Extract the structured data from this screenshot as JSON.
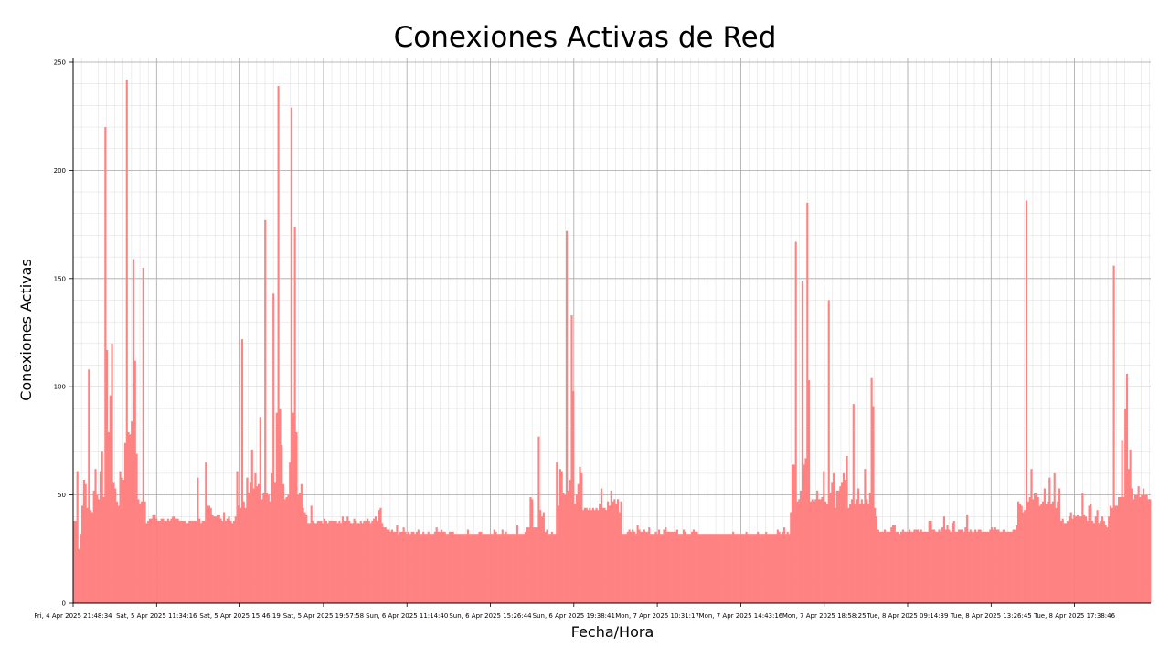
{
  "chart_data": {
    "type": "bar",
    "title": "Conexiones Activas de Red",
    "xlabel": "Fecha/Hora",
    "ylabel": "Conexiones Activas",
    "ylim": [
      0,
      250
    ],
    "yticks": [
      0,
      50,
      100,
      150,
      200,
      250
    ],
    "x_tick_labels": [
      "Fri, 4 Apr 2025 21:48:34",
      "Sat, 5 Apr 2025 11:34:16",
      "Sat, 5 Apr 2025 15:46:19",
      "Sat, 5 Apr 2025 19:57:58",
      "Sun, 6 Apr 2025 11:14:40",
      "Sun, 6 Apr 2025 15:26:44",
      "Sun, 6 Apr 2025 19:38:41",
      "Mon, 7 Apr 2025 10:31:17",
      "Mon, 7 Apr 2025 14:43:16",
      "Mon, 7 Apr 2025 18:58:25",
      "Tue, 8 Apr 2025 09:14:39",
      "Tue, 8 Apr 2025 13:26:45",
      "Tue, 8 Apr 2025 17:38:46"
    ],
    "grid": true,
    "bar_color": "#ff7f7f",
    "values": [
      38,
      38,
      61,
      25,
      32,
      45,
      57,
      55,
      44,
      108,
      43,
      42,
      52,
      62,
      50,
      48,
      61,
      70,
      49,
      220,
      117,
      79,
      96,
      120,
      56,
      53,
      47,
      45,
      61,
      58,
      57,
      74,
      242,
      79,
      78,
      84,
      159,
      112,
      69,
      48,
      46,
      47,
      155,
      47,
      37,
      38,
      39,
      39,
      41,
      41,
      39,
      38,
      38,
      39,
      39,
      38,
      38,
      39,
      38,
      39,
      40,
      40,
      39,
      39,
      38,
      38,
      38,
      38,
      37,
      37,
      38,
      38,
      38,
      38,
      38,
      58,
      39,
      37,
      38,
      38,
      65,
      45,
      45,
      44,
      41,
      40,
      40,
      41,
      41,
      39,
      38,
      42,
      38,
      39,
      40,
      38,
      37,
      38,
      40,
      61,
      45,
      44,
      122,
      47,
      44,
      58,
      51,
      56,
      71,
      53,
      60,
      54,
      55,
      86,
      48,
      51,
      177,
      51,
      50,
      47,
      60,
      143,
      56,
      88,
      239,
      90,
      73,
      55,
      48,
      49,
      50,
      65,
      229,
      88,
      174,
      79,
      50,
      51,
      55,
      44,
      42,
      41,
      37,
      37,
      45,
      38,
      37,
      37,
      38,
      38,
      38,
      37,
      39,
      38,
      37,
      38,
      38,
      38,
      38,
      38,
      37,
      38,
      37,
      40,
      38,
      38,
      40,
      38,
      37,
      37,
      39,
      38,
      37,
      37,
      38,
      37,
      38,
      38,
      39,
      38,
      37,
      38,
      39,
      40,
      38,
      43,
      44,
      37,
      35,
      35,
      34,
      34,
      33,
      34,
      33,
      33,
      36,
      32,
      33,
      33,
      35,
      33,
      32,
      33,
      32,
      33,
      33,
      32,
      33,
      34,
      32,
      32,
      33,
      32,
      32,
      33,
      32,
      32,
      32,
      33,
      35,
      33,
      33,
      34,
      33,
      33,
      32,
      32,
      33,
      33,
      33,
      32,
      32,
      32,
      32,
      32,
      32,
      32,
      32,
      34,
      32,
      32,
      32,
      32,
      32,
      32,
      33,
      33,
      32,
      32,
      32,
      32,
      32,
      32,
      32,
      34,
      33,
      32,
      32,
      32,
      34,
      32,
      33,
      32,
      32,
      32,
      32,
      32,
      32,
      36,
      32,
      32,
      32,
      32,
      33,
      35,
      35,
      49,
      48,
      35,
      35,
      35,
      77,
      43,
      40,
      42,
      33,
      34,
      32,
      32,
      33,
      32,
      32,
      65,
      45,
      62,
      61,
      51,
      50,
      172,
      52,
      57,
      133,
      98,
      46,
      50,
      55,
      63,
      60,
      43,
      44,
      44,
      43,
      44,
      43,
      44,
      43,
      44,
      43,
      46,
      53,
      44,
      44,
      43,
      47,
      45,
      52,
      47,
      48,
      46,
      48,
      42,
      47,
      32,
      32,
      32,
      33,
      34,
      33,
      34,
      33,
      32,
      36,
      34,
      33,
      33,
      34,
      33,
      33,
      35,
      32,
      32,
      32,
      33,
      32,
      34,
      32,
      32,
      34,
      35,
      33,
      33,
      33,
      33,
      33,
      33,
      34,
      32,
      32,
      32,
      34,
      33,
      32,
      32,
      32,
      33,
      34,
      33,
      33,
      32,
      32,
      32,
      32,
      32,
      32,
      32,
      32,
      32,
      32,
      32,
      32,
      32,
      32,
      32,
      32,
      32,
      32,
      32,
      32,
      32,
      33,
      32,
      32,
      32,
      32,
      32,
      32,
      32,
      33,
      32,
      32,
      32,
      32,
      32,
      32,
      33,
      32,
      32,
      32,
      32,
      33,
      32,
      32,
      32,
      32,
      32,
      32,
      34,
      33,
      32,
      33,
      35,
      32,
      33,
      32,
      42,
      64,
      64,
      167,
      47,
      48,
      52,
      149,
      64,
      67,
      185,
      103,
      47,
      48,
      47,
      48,
      52,
      48,
      48,
      49,
      61,
      47,
      46,
      140,
      51,
      56,
      60,
      44,
      52,
      52,
      54,
      56,
      60,
      57,
      68,
      44,
      46,
      48,
      92,
      46,
      48,
      53,
      46,
      48,
      46,
      62,
      48,
      46,
      51,
      104,
      91,
      44,
      40,
      34,
      33,
      33,
      33,
      34,
      33,
      33,
      33,
      35,
      36,
      36,
      33,
      33,
      32,
      33,
      34,
      33,
      33,
      33,
      34,
      33,
      33,
      34,
      34,
      34,
      33,
      34,
      33,
      33,
      33,
      33,
      38,
      38,
      34,
      34,
      33,
      33,
      34,
      33,
      35,
      40,
      34,
      36,
      34,
      33,
      37,
      38,
      33,
      33,
      34,
      34,
      34,
      33,
      35,
      41,
      33,
      34,
      33,
      33,
      34,
      33,
      34,
      34,
      33,
      33,
      33,
      33,
      33,
      34,
      35,
      34,
      35,
      34,
      34,
      33,
      33,
      34,
      33,
      33,
      33,
      33,
      33,
      34,
      34,
      36,
      47,
      46,
      45,
      42,
      43,
      186,
      47,
      49,
      62,
      48,
      51,
      51,
      49,
      45,
      46,
      47,
      53,
      46,
      47,
      58,
      46,
      47,
      60,
      44,
      47,
      53,
      38,
      39,
      37,
      37,
      38,
      40,
      42,
      39,
      41,
      40,
      41,
      40,
      40,
      51,
      41,
      40,
      38,
      45,
      46,
      38,
      37,
      40,
      43,
      37,
      38,
      40,
      38,
      36,
      35,
      40,
      45,
      44,
      156,
      45,
      45,
      49,
      49,
      75,
      49,
      90,
      106,
      62,
      71,
      53,
      48,
      50,
      50,
      54,
      49,
      50,
      53,
      50,
      50,
      48,
      48
    ]
  }
}
